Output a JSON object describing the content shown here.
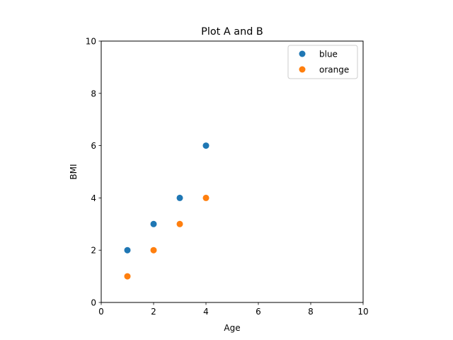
{
  "chart_data": {
    "type": "scatter",
    "title": "Plot A and B",
    "xlabel": "Age",
    "ylabel": "BMI",
    "xlim": [
      0,
      10
    ],
    "ylim": [
      0,
      10
    ],
    "xticks": [
      0,
      2,
      4,
      6,
      8,
      10
    ],
    "yticks": [
      0,
      2,
      4,
      6,
      8,
      10
    ],
    "grid": false,
    "legend_position": "top-right",
    "series": [
      {
        "name": "blue",
        "color": "#1f77b4",
        "x": [
          1,
          2,
          3,
          4
        ],
        "y": [
          2,
          3,
          4,
          6
        ]
      },
      {
        "name": "orange",
        "color": "#ff7f0e",
        "x": [
          1,
          2,
          3,
          4
        ],
        "y": [
          1,
          2,
          3,
          4
        ]
      }
    ]
  }
}
